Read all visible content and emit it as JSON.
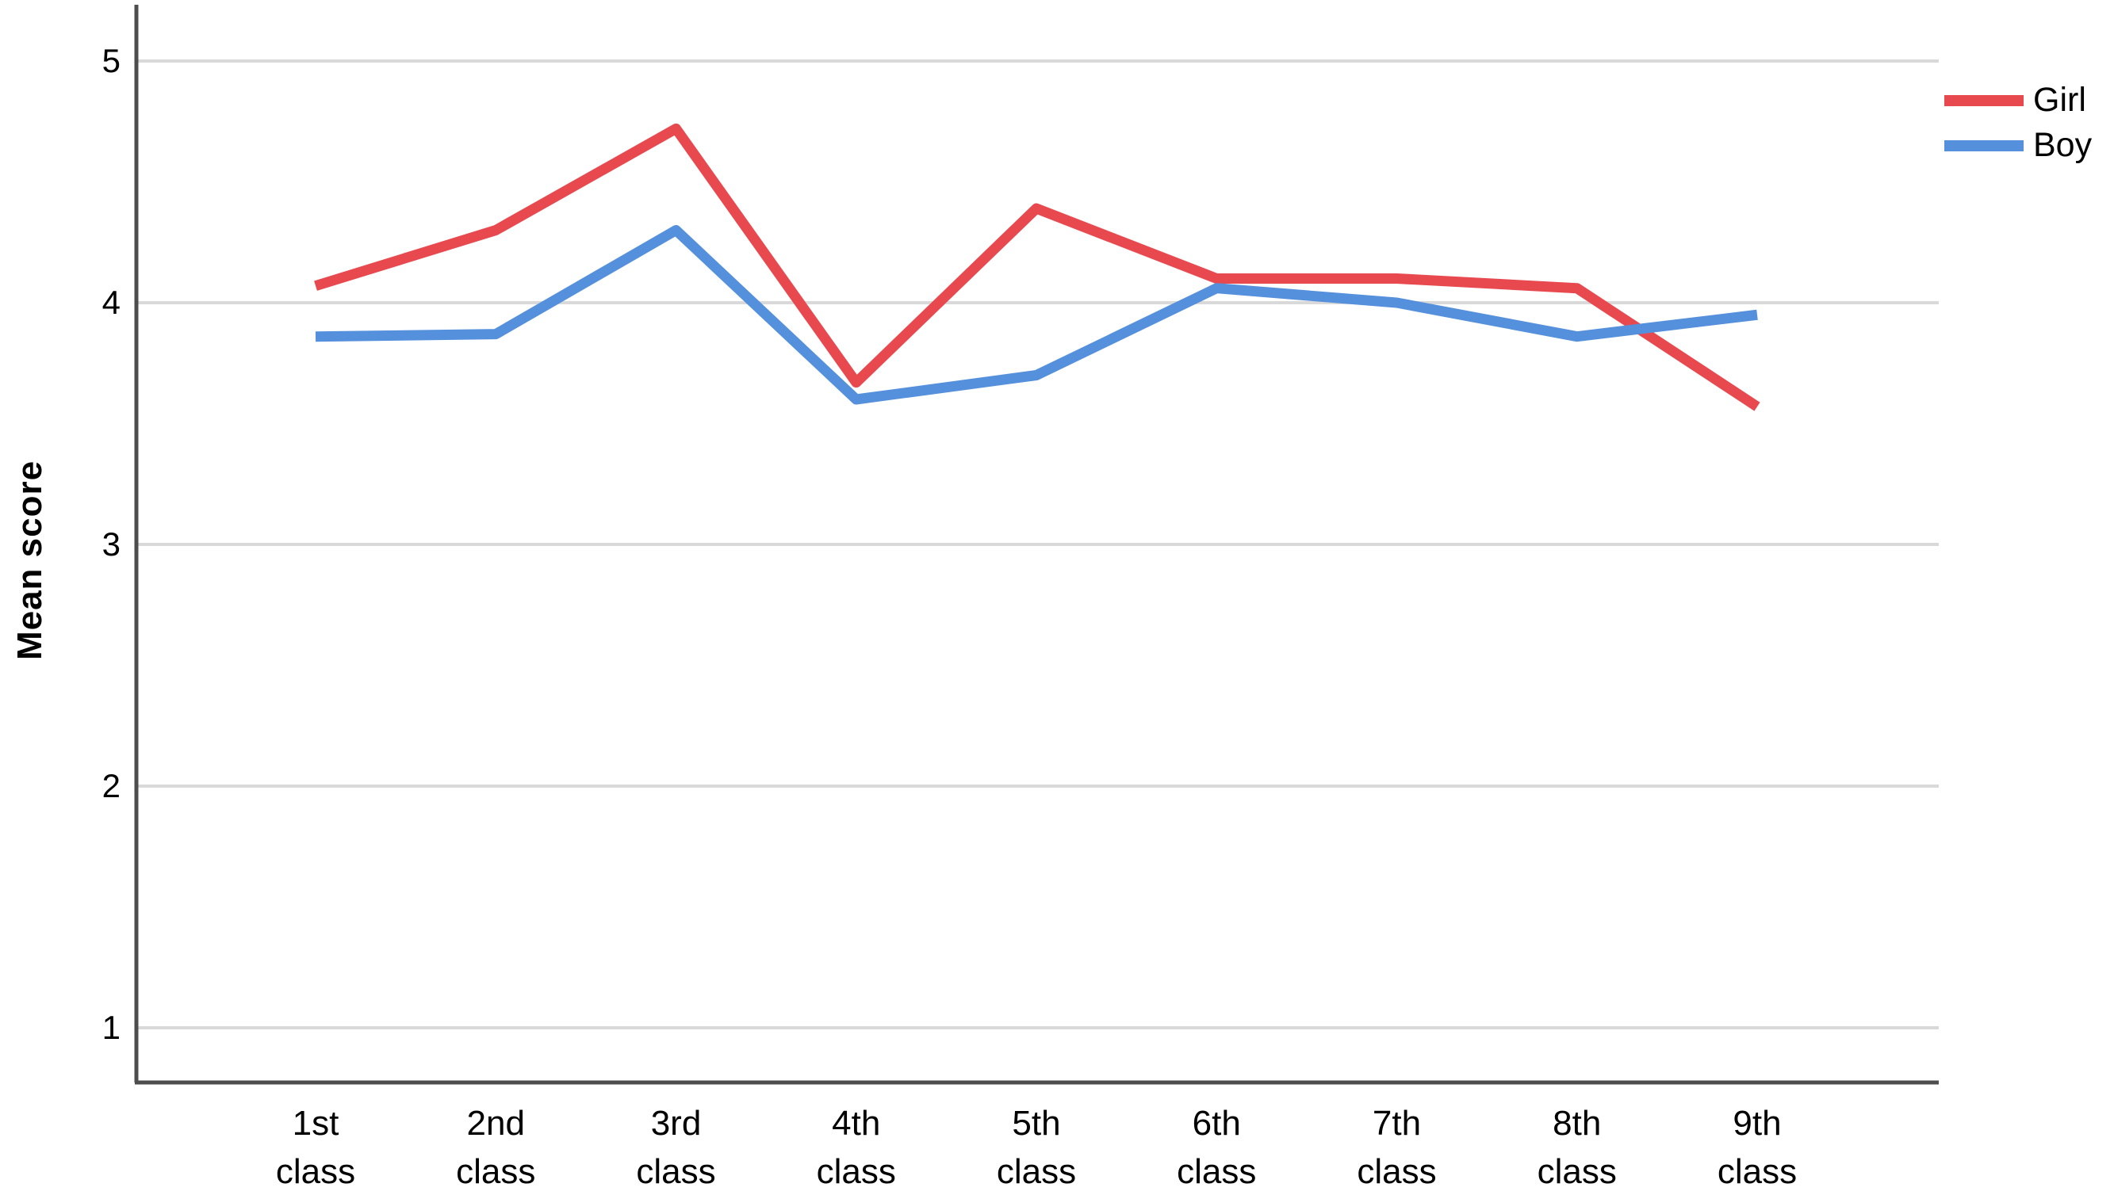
{
  "chart_data": {
    "type": "line",
    "title": "",
    "xlabel": "",
    "ylabel": "Mean score",
    "categories": [
      "1st class",
      "2nd class",
      "3rd class",
      "4th class",
      "5th class",
      "6th class",
      "7th class",
      "8th class",
      "9th class"
    ],
    "yticks": [
      "1",
      "2",
      "3",
      "4",
      "5"
    ],
    "ylim": [
      0.77,
      5.23
    ],
    "grid": "horizontal-only",
    "legend_position": "top-right-outside",
    "series": [
      {
        "name": "Girl",
        "color": "#e8494f",
        "values": [
          4.07,
          4.3,
          4.72,
          3.67,
          4.39,
          4.1,
          4.1,
          4.06,
          3.57
        ]
      },
      {
        "name": "Boy",
        "color": "#5590dd",
        "values": [
          3.86,
          3.87,
          4.3,
          3.6,
          3.7,
          4.06,
          4.0,
          3.86,
          3.95
        ]
      }
    ]
  },
  "colors": {
    "background": "#ffffff",
    "gridline": "#d9d9d9",
    "axis": "#4d4d4d",
    "text": "#000000"
  }
}
